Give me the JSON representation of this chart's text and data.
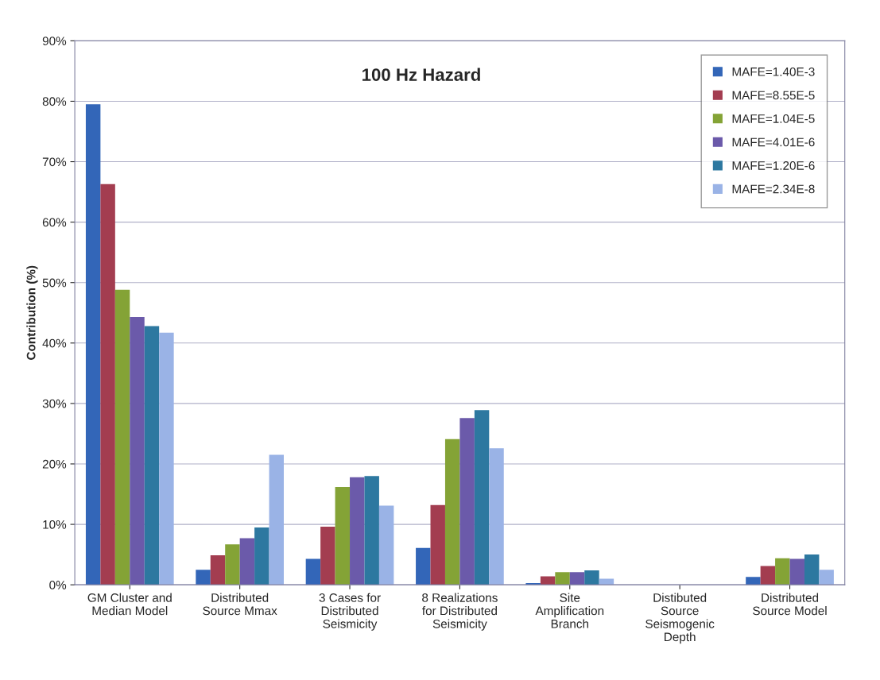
{
  "chart_data": {
    "type": "bar",
    "title": "100 Hz Hazard",
    "ylabel": "Contribution (%)",
    "categories": [
      "GM Cluster and\nMedian Model",
      "Distributed\nSource Mmax",
      "3 Cases for\nDistributed\nSeismicity",
      "8 Realizations\nfor Distributed\nSeismicity",
      "Site\nAmplification\nBranch",
      "Distibuted\nSource\nSeismogenic\nDepth",
      "Distributed\nSource Model"
    ],
    "series": [
      {
        "name": "MAFE=1.40E-3",
        "color": "#3366b8",
        "values": [
          79.5,
          2.5,
          4.3,
          6.1,
          0.3,
          null,
          1.3
        ]
      },
      {
        "name": "MAFE=8.55E-5",
        "color": "#a33d50",
        "values": [
          66.3,
          4.9,
          9.6,
          13.2,
          1.4,
          null,
          3.1
        ]
      },
      {
        "name": "MAFE=1.04E-5",
        "color": "#84a336",
        "values": [
          48.8,
          6.7,
          16.2,
          24.1,
          2.1,
          null,
          4.4
        ]
      },
      {
        "name": "MAFE=4.01E-6",
        "color": "#6b5aaa",
        "values": [
          44.3,
          7.7,
          17.8,
          27.6,
          2.1,
          null,
          4.3
        ]
      },
      {
        "name": "MAFE=1.20E-6",
        "color": "#2d78a0",
        "values": [
          42.8,
          9.5,
          18.0,
          28.9,
          2.4,
          null,
          5.0
        ]
      },
      {
        "name": "MAFE=2.34E-8",
        "color": "#9ab3e6",
        "values": [
          41.7,
          21.5,
          13.1,
          22.6,
          1.0,
          null,
          2.5
        ]
      }
    ],
    "ylim": [
      0,
      90
    ],
    "yticks": [
      {
        "value": 0,
        "label": "0%"
      },
      {
        "value": 10,
        "label": "10%"
      },
      {
        "value": 20,
        "label": "20%"
      },
      {
        "value": 30,
        "label": "30%"
      },
      {
        "value": 40,
        "label": "40%"
      },
      {
        "value": 50,
        "label": "50%"
      },
      {
        "value": 60,
        "label": "60%"
      },
      {
        "value": 70,
        "label": "70%"
      },
      {
        "value": 80,
        "label": "80%"
      },
      {
        "value": 90,
        "label": "90%"
      }
    ],
    "grid": "y",
    "legend": "top right"
  }
}
